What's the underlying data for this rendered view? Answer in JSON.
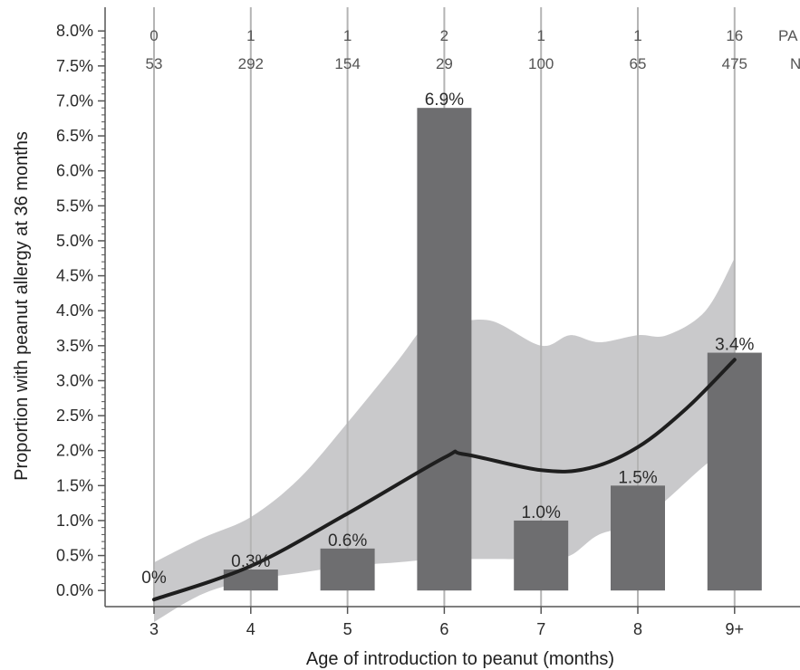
{
  "chart_data": {
    "type": "bar",
    "title": "",
    "xlabel": "Age of introduction to peanut (months)",
    "ylabel": "Proportion with peanut allergy at 36 months",
    "ylim": [
      -0.2,
      8.3
    ],
    "yticks": [
      "0.0%",
      "0.5%",
      "1.0%",
      "1.5%",
      "2.0%",
      "2.5%",
      "3.0%",
      "3.5%",
      "4.0%",
      "4.5%",
      "5.0%",
      "5.5%",
      "6.0%",
      "6.5%",
      "7.0%",
      "7.5%",
      "8.0%"
    ],
    "grid": "vertical lines at categories",
    "categories": [
      "3",
      "4",
      "5",
      "6",
      "7",
      "8",
      "9+"
    ],
    "series": [
      {
        "values": [
          0.0,
          0.3,
          0.6,
          6.9,
          1.0,
          1.5,
          3.4
        ],
        "labels": [
          "0%",
          "0.3%",
          "0.6%",
          "6.9%",
          "1.0%",
          "1.5%",
          "3.4%"
        ]
      }
    ],
    "fitted_curve": {
      "x": [
        0,
        1,
        2,
        3,
        3.2,
        4,
        4.5,
        5,
        5.5,
        6
      ],
      "y": [
        -0.13,
        0.35,
        1.1,
        1.9,
        1.95,
        1.72,
        1.75,
        2.05,
        2.6,
        3.3
      ]
    },
    "confidence_band": {
      "x": [
        0,
        0.5,
        1,
        1.5,
        2,
        2.5,
        2.9,
        3.1,
        3.5,
        4,
        4.3,
        4.6,
        5,
        5.3,
        5.7,
        6
      ],
      "upper": [
        0.4,
        0.75,
        1.05,
        1.6,
        2.4,
        3.25,
        3.95,
        3.85,
        3.85,
        3.5,
        3.65,
        3.55,
        3.65,
        3.65,
        4.0,
        4.75
      ],
      "lower": [
        -0.45,
        -0.05,
        0.15,
        0.25,
        0.35,
        0.4,
        0.45,
        0.45,
        0.45,
        0.45,
        0.5,
        0.8,
        0.95,
        1.3,
        1.8,
        2.1
      ]
    },
    "top_rows": {
      "row1_label": "PA",
      "row1_values": [
        "0",
        "1",
        "1",
        "2",
        "1",
        "1",
        "16"
      ],
      "row2_label": "N",
      "row2_values": [
        "53",
        "292",
        "154",
        "29",
        "100",
        "65",
        "475"
      ]
    },
    "colors": {
      "bar": "#6e6e70",
      "curve": "#1e1e1e",
      "band": "#c9c9cb",
      "grid": "#b4b4b4",
      "axis": "#555555"
    }
  }
}
